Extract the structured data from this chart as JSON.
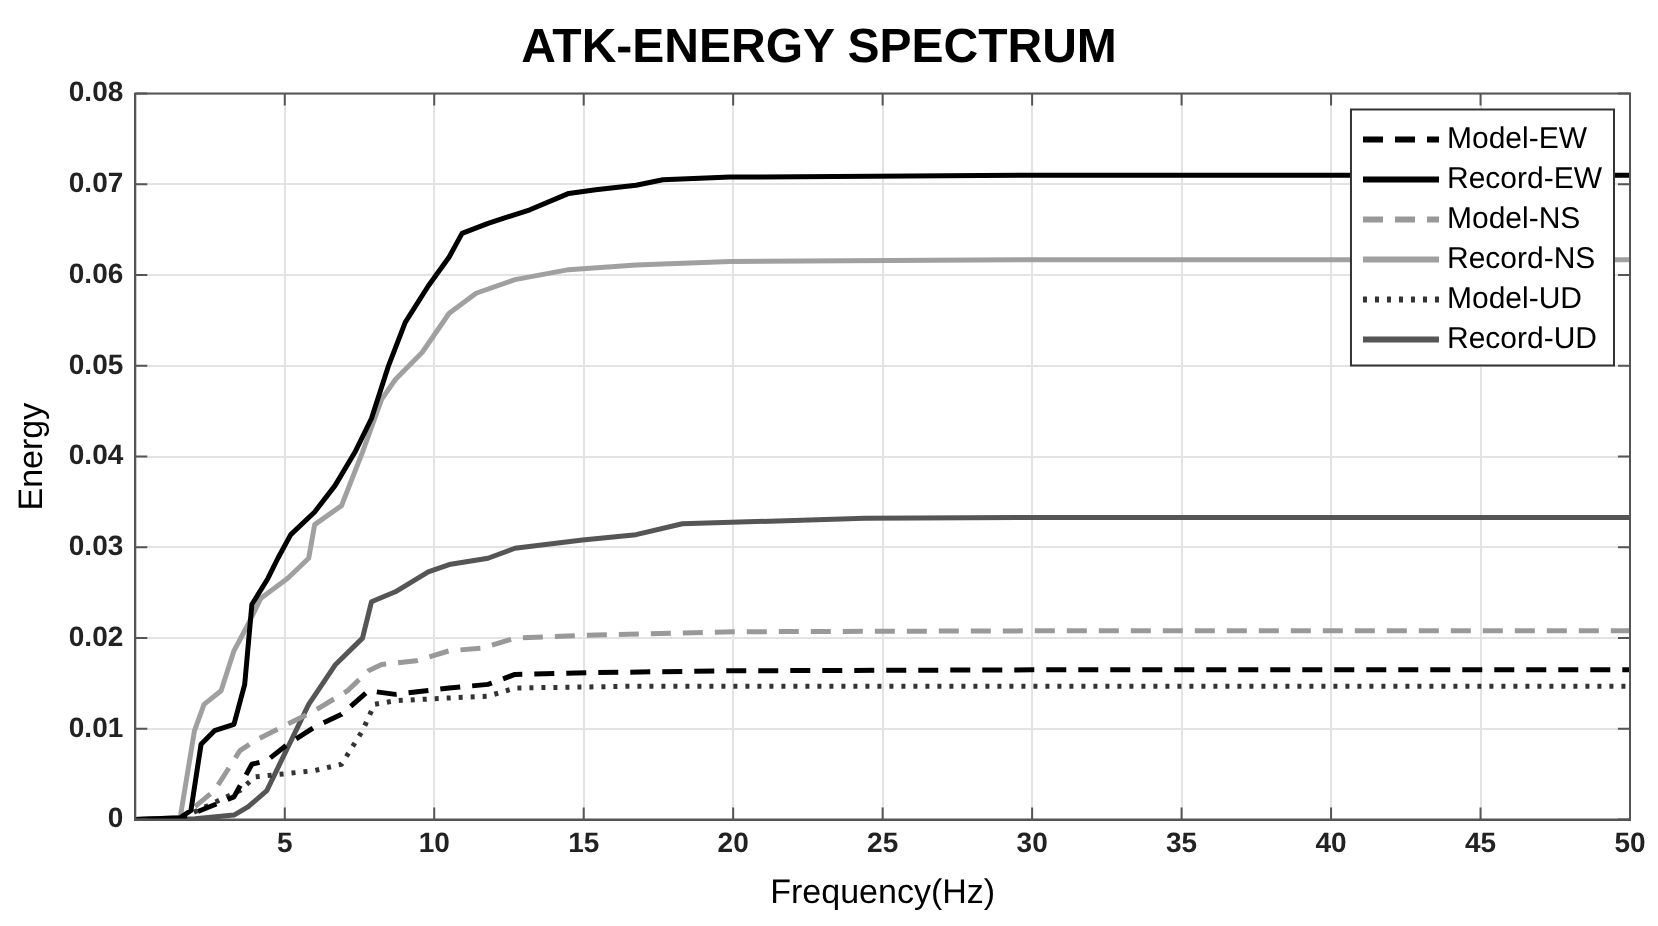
{
  "chart_data": {
    "type": "line",
    "title": "ATK-ENERGY SPECTRUM",
    "xlabel": "Frequency(Hz)",
    "ylabel": "Energy",
    "xlim": [
      0,
      50
    ],
    "xticks": [
      5,
      10,
      15,
      20,
      25,
      30,
      35,
      40,
      45,
      50
    ],
    "ylim": [
      0,
      0.08
    ],
    "yticks": [
      0,
      0.01,
      0.02,
      0.03,
      0.04,
      0.05,
      0.06,
      0.07,
      0.08
    ],
    "grid": true,
    "legend": "top right",
    "marker": "none",
    "series": [
      {
        "name": "Model-EW",
        "color": "#000000",
        "line_style": "dashed",
        "x": [
          0,
          1.5,
          3.3,
          3.9,
          4.4,
          5.1,
          6.0,
          6.9,
          7.8,
          8.7,
          10.5,
          11.8,
          12.7,
          15.4,
          20,
          30,
          40,
          50
        ],
        "values": [
          0,
          0.0001,
          0.0025,
          0.0061,
          0.0065,
          0.0083,
          0.0102,
          0.0116,
          0.0142,
          0.0138,
          0.0145,
          0.0149,
          0.016,
          0.0162,
          0.0164,
          0.0165,
          0.0165,
          0.0165
        ]
      },
      {
        "name": "Record-EW",
        "color": "#000000",
        "line_style": "solid",
        "x": [
          0,
          1.5,
          1.86,
          2.2,
          2.65,
          3.3,
          3.66,
          3.9,
          4.44,
          4.77,
          5.2,
          6.0,
          6.68,
          7.35,
          7.9,
          8.47,
          9.03,
          9.8,
          10.5,
          10.93,
          11.8,
          13.2,
          14.5,
          15.4,
          16.75,
          17.65,
          19.9,
          30,
          40,
          50
        ],
        "values": [
          0,
          0.0002,
          0.001,
          0.0083,
          0.0098,
          0.0105,
          0.0149,
          0.0237,
          0.0266,
          0.0288,
          0.0314,
          0.0339,
          0.0368,
          0.0405,
          0.0442,
          0.05,
          0.0548,
          0.0588,
          0.062,
          0.0646,
          0.0657,
          0.0672,
          0.069,
          0.0694,
          0.0699,
          0.0705,
          0.0708,
          0.071,
          0.071,
          0.071
        ]
      },
      {
        "name": "Model-NS",
        "color": "#999999",
        "line_style": "dashed",
        "x": [
          0,
          1.5,
          2.65,
          3.5,
          4.0,
          4.9,
          6.0,
          7.1,
          7.8,
          8.24,
          9.4,
          10.5,
          11.6,
          12.7,
          15.0,
          20,
          30,
          40,
          50
        ],
        "values": [
          0,
          0.0001,
          0.0032,
          0.0076,
          0.0087,
          0.0102,
          0.012,
          0.0142,
          0.0164,
          0.0171,
          0.0175,
          0.0186,
          0.0189,
          0.02,
          0.0203,
          0.0207,
          0.0208,
          0.0208,
          0.0208
        ]
      },
      {
        "name": "Record-NS",
        "color": "#a0a0a0",
        "line_style": "solid",
        "x": [
          0,
          1.5,
          1.98,
          2.3,
          2.87,
          3.3,
          3.77,
          4.2,
          5.1,
          5.8,
          6.0,
          6.9,
          7.6,
          8.24,
          8.7,
          9.6,
          10.5,
          11.4,
          12.7,
          14.5,
          16.75,
          19.9,
          30,
          40,
          50
        ],
        "values": [
          0,
          0.0002,
          0.0098,
          0.0127,
          0.0142,
          0.0186,
          0.0215,
          0.0244,
          0.0266,
          0.0288,
          0.0325,
          0.0346,
          0.0405,
          0.0463,
          0.0485,
          0.0515,
          0.0558,
          0.058,
          0.0595,
          0.0606,
          0.0611,
          0.0615,
          0.0617,
          0.0617,
          0.0617
        ]
      },
      {
        "name": "Model-UD",
        "color": "#333333",
        "line_style": "dotted",
        "x": [
          0,
          1.5,
          3.5,
          4.0,
          6.0,
          6.9,
          7.6,
          8.0,
          8.7,
          10.5,
          11.8,
          12.7,
          16.75,
          20,
          30,
          40,
          50
        ],
        "values": [
          0,
          0.0001,
          0.0032,
          0.0047,
          0.0054,
          0.0061,
          0.0098,
          0.0127,
          0.0131,
          0.0134,
          0.0136,
          0.0145,
          0.0147,
          0.0147,
          0.0147,
          0.0147,
          0.0147
        ]
      },
      {
        "name": "Record-UD",
        "color": "#555555",
        "line_style": "solid",
        "x": [
          0,
          2,
          3.3,
          3.77,
          4.4,
          5.8,
          6.7,
          7.6,
          7.9,
          8.7,
          9.8,
          10.5,
          11.8,
          12.7,
          14.96,
          16.75,
          18.3,
          24.4,
          30,
          40,
          50
        ],
        "values": [
          0,
          0.0001,
          0.0005,
          0.0014,
          0.0032,
          0.0127,
          0.0171,
          0.02,
          0.024,
          0.0251,
          0.0273,
          0.0281,
          0.0288,
          0.0299,
          0.0308,
          0.0314,
          0.0326,
          0.0332,
          0.0333,
          0.0333,
          0.0333
        ]
      }
    ]
  }
}
